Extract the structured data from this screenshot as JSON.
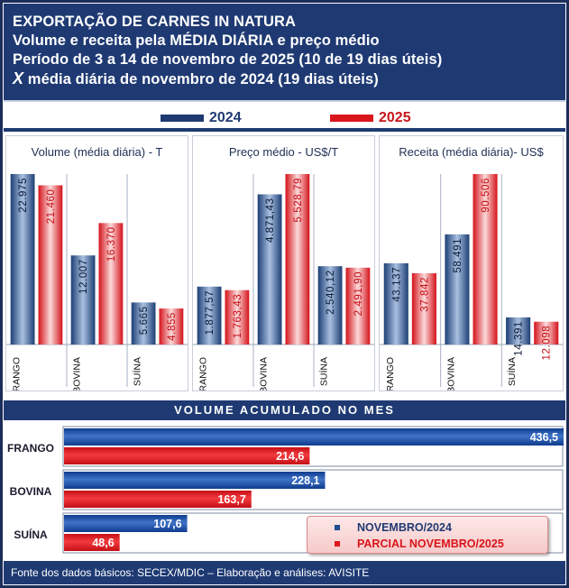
{
  "header": {
    "line1": "EXPORTAÇÃO DE CARNES IN NATURA",
    "line2": "Volume e receita pela MÉDIA DIÁRIA e preço médio",
    "line3": "Período de 3 a 14 de novembro de 2025 (10 de 19 dias úteis)",
    "line4_mark": "X",
    "line4": "média diária de novembro de 2024 (19 dias úteis)"
  },
  "top_legend": {
    "label_2024": "2024",
    "label_2025": "2025"
  },
  "colors": {
    "blue": "#1f4e8c",
    "red": "#e0161b",
    "navy": "#1f3a73"
  },
  "chart_data": [
    {
      "type": "bar",
      "title": "Volume (média diária) - T",
      "categories": [
        "FRANGO",
        "BOVINA",
        "SUÍNA"
      ],
      "series": [
        {
          "name": "2024",
          "values": [
            22975,
            12007,
            5665
          ],
          "labels": [
            "22.975",
            "12.007",
            "5.665"
          ]
        },
        {
          "name": "2025",
          "values": [
            21460,
            16370,
            4855
          ],
          "labels": [
            "21.460",
            "16.370",
            "4.855"
          ]
        }
      ]
    },
    {
      "type": "bar",
      "title": "Preço médio - US$/T",
      "categories": [
        "FRANGO",
        "BOVINA",
        "SUÍNA"
      ],
      "series": [
        {
          "name": "2024",
          "values": [
            1877.57,
            4871.43,
            2540.12
          ],
          "labels": [
            "1.877,57",
            "4.871,43",
            "2.540,12"
          ]
        },
        {
          "name": "2025",
          "values": [
            1763.43,
            5528.79,
            2491.9
          ],
          "labels": [
            "1.763,43",
            "5.528,79",
            "2.491,90"
          ]
        }
      ]
    },
    {
      "type": "bar",
      "title": "Receita (média diária)- US$",
      "categories": [
        "FRANGO",
        "BOVINA",
        "SUÍNA"
      ],
      "series": [
        {
          "name": "2024",
          "values": [
            43137,
            58491,
            14391
          ],
          "labels": [
            "43.137",
            "58.491",
            "14.391"
          ]
        },
        {
          "name": "2025",
          "values": [
            37842,
            90506,
            12098
          ],
          "labels": [
            "37.842",
            "90.506",
            "12.098"
          ]
        }
      ]
    },
    {
      "type": "bar",
      "orientation": "horizontal",
      "title": "VOLUME ACUMULADO NO MES",
      "categories": [
        "FRANGO",
        "BOVINA",
        "SUÍNA"
      ],
      "series": [
        {
          "name": "NOVEMBRO/2024",
          "values": [
            436.5,
            228.1,
            107.6
          ],
          "labels": [
            "436,5",
            "228,1",
            "107,6"
          ]
        },
        {
          "name": "PARCIAL NOVEMBRO/2025",
          "values": [
            214.6,
            163.7,
            48.6
          ],
          "labels": [
            "214,6",
            "163,7",
            "48,6"
          ]
        }
      ],
      "legend": "bottom-right"
    }
  ],
  "footer": {
    "text": "Fonte dos dados básicos: SECEX/MDIC – Elaboração e análises: AVISITE"
  }
}
